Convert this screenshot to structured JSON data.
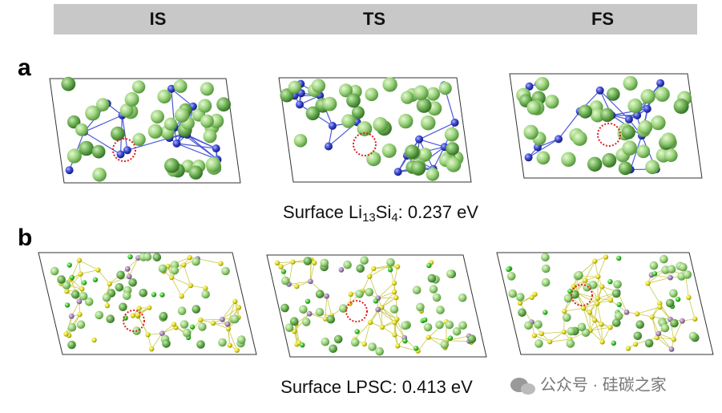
{
  "header": {
    "columns": [
      "IS",
      "TS",
      "FS"
    ]
  },
  "panels": [
    {
      "label": "a",
      "caption": {
        "prefix": "Surface Li",
        "sub1": "13",
        "mid": "Si",
        "sub2": "4",
        "suffix": ": 0.237 eV"
      }
    },
    {
      "label": "b",
      "caption": "Surface LPSC: 0.413 eV"
    }
  ],
  "watermark": "公众号 · 硅碳之家"
}
